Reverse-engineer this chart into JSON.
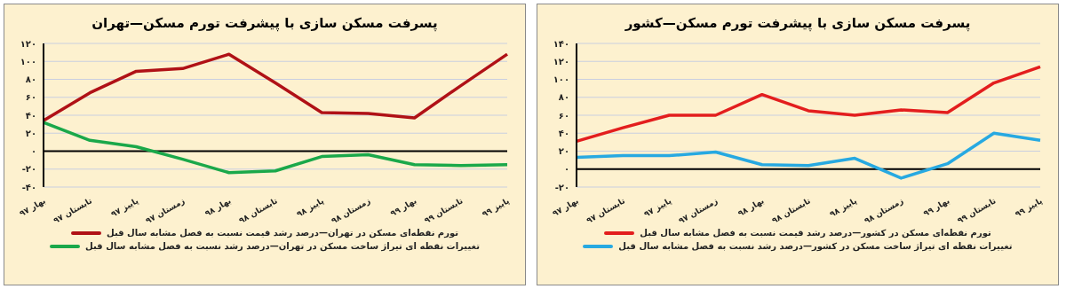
{
  "chart_data": [
    {
      "type": "line",
      "title": "پسرفت مسکن سازی با پیشرفت تورم مسکن—تهران",
      "categories": [
        "بهار ۹۷",
        "تابستان ۹۷",
        "پاییز ۹۷",
        "زمستان ۹۷",
        "بهار ۹۸",
        "تابستان ۹۸",
        "پاییز ۹۸",
        "زمستان ۹۸",
        "بهار ۹۹",
        "تابستان ۹۹",
        "پاییز ۹۹"
      ],
      "series": [
        {
          "name": "تورم نقطه‌ای مسکن در تهران—درصد رشد قیمت نسبت به فصل مشابه سال قبل",
          "color": "#b01116",
          "values": [
            34,
            65,
            89,
            92,
            108,
            76,
            43,
            42,
            37,
            73,
            108
          ]
        },
        {
          "name": "تغییرات نقطه ای تیراژ ساخت مسکن در تهران—درصد رشد نسبت به فصل مشابه سال قبل",
          "color": "#1aa84a",
          "values": [
            32,
            12,
            5,
            -9,
            -24,
            -22,
            -6,
            -4,
            -15,
            -16,
            -15
          ]
        }
      ],
      "ylim": [
        -40,
        120
      ],
      "yticks": [
        {
          "value": -40,
          "label": "-۴۰"
        },
        {
          "value": -20,
          "label": "-۲۰"
        },
        {
          "value": 0,
          "label": "۰"
        },
        {
          "value": 20,
          "label": "۲۰"
        },
        {
          "value": 40,
          "label": "۴۰"
        },
        {
          "value": 60,
          "label": "۶۰"
        },
        {
          "value": 80,
          "label": "۸۰"
        },
        {
          "value": 100,
          "label": "۱۰۰"
        },
        {
          "value": 120,
          "label": "۱۲۰"
        }
      ],
      "ref_lines": [
        {
          "axis": "y",
          "value": 0,
          "color": "#000000"
        }
      ],
      "grid": "y",
      "legend": "bottom",
      "marker": "none",
      "line_style": "solid"
    },
    {
      "type": "line",
      "title": "پسرفت مسکن سازی با پیشرفت تورم مسکن—کشور",
      "categories": [
        "بهار ۹۷",
        "تابستان ۹۷",
        "پاییز ۹۷",
        "زمستان ۹۷",
        "بهار ۹۸",
        "تابستان ۹۸",
        "پاییز ۹۸",
        "زمستان ۹۸",
        "بهار ۹۹",
        "تابستان ۹۹",
        "پاییز ۹۹"
      ],
      "series": [
        {
          "name": "تورم نقطه‌ای مسکن در کشور—درصد رشد قیمت نسبت به فصل مشابه سال قبل",
          "color": "#e31e1e",
          "values": [
            31,
            46,
            60,
            60,
            83,
            65,
            60,
            66,
            63,
            96,
            114
          ]
        },
        {
          "name": "تغییرات نقطه ای تیراژ ساخت مسکن در کشور—درصد رشد نسبت به فصل مشابه سال قبل",
          "color": "#27a9e1",
          "values": [
            13,
            15,
            15,
            19,
            5,
            4,
            12,
            -10,
            6,
            40,
            32
          ]
        }
      ],
      "ylim": [
        -20,
        140
      ],
      "yticks": [
        {
          "value": -20,
          "label": "-۲۰"
        },
        {
          "value": 0,
          "label": "۰"
        },
        {
          "value": 20,
          "label": "۲۰"
        },
        {
          "value": 40,
          "label": "۴۰"
        },
        {
          "value": 60,
          "label": "۶۰"
        },
        {
          "value": 80,
          "label": "۸۰"
        },
        {
          "value": 100,
          "label": "۱۰۰"
        },
        {
          "value": 120,
          "label": "۱۲۰"
        },
        {
          "value": 140,
          "label": "۱۴۰"
        }
      ],
      "ref_lines": [
        {
          "axis": "y",
          "value": 0,
          "color": "#000000"
        }
      ],
      "grid": "y",
      "legend": "bottom",
      "marker": "none",
      "line_style": "solid"
    }
  ]
}
